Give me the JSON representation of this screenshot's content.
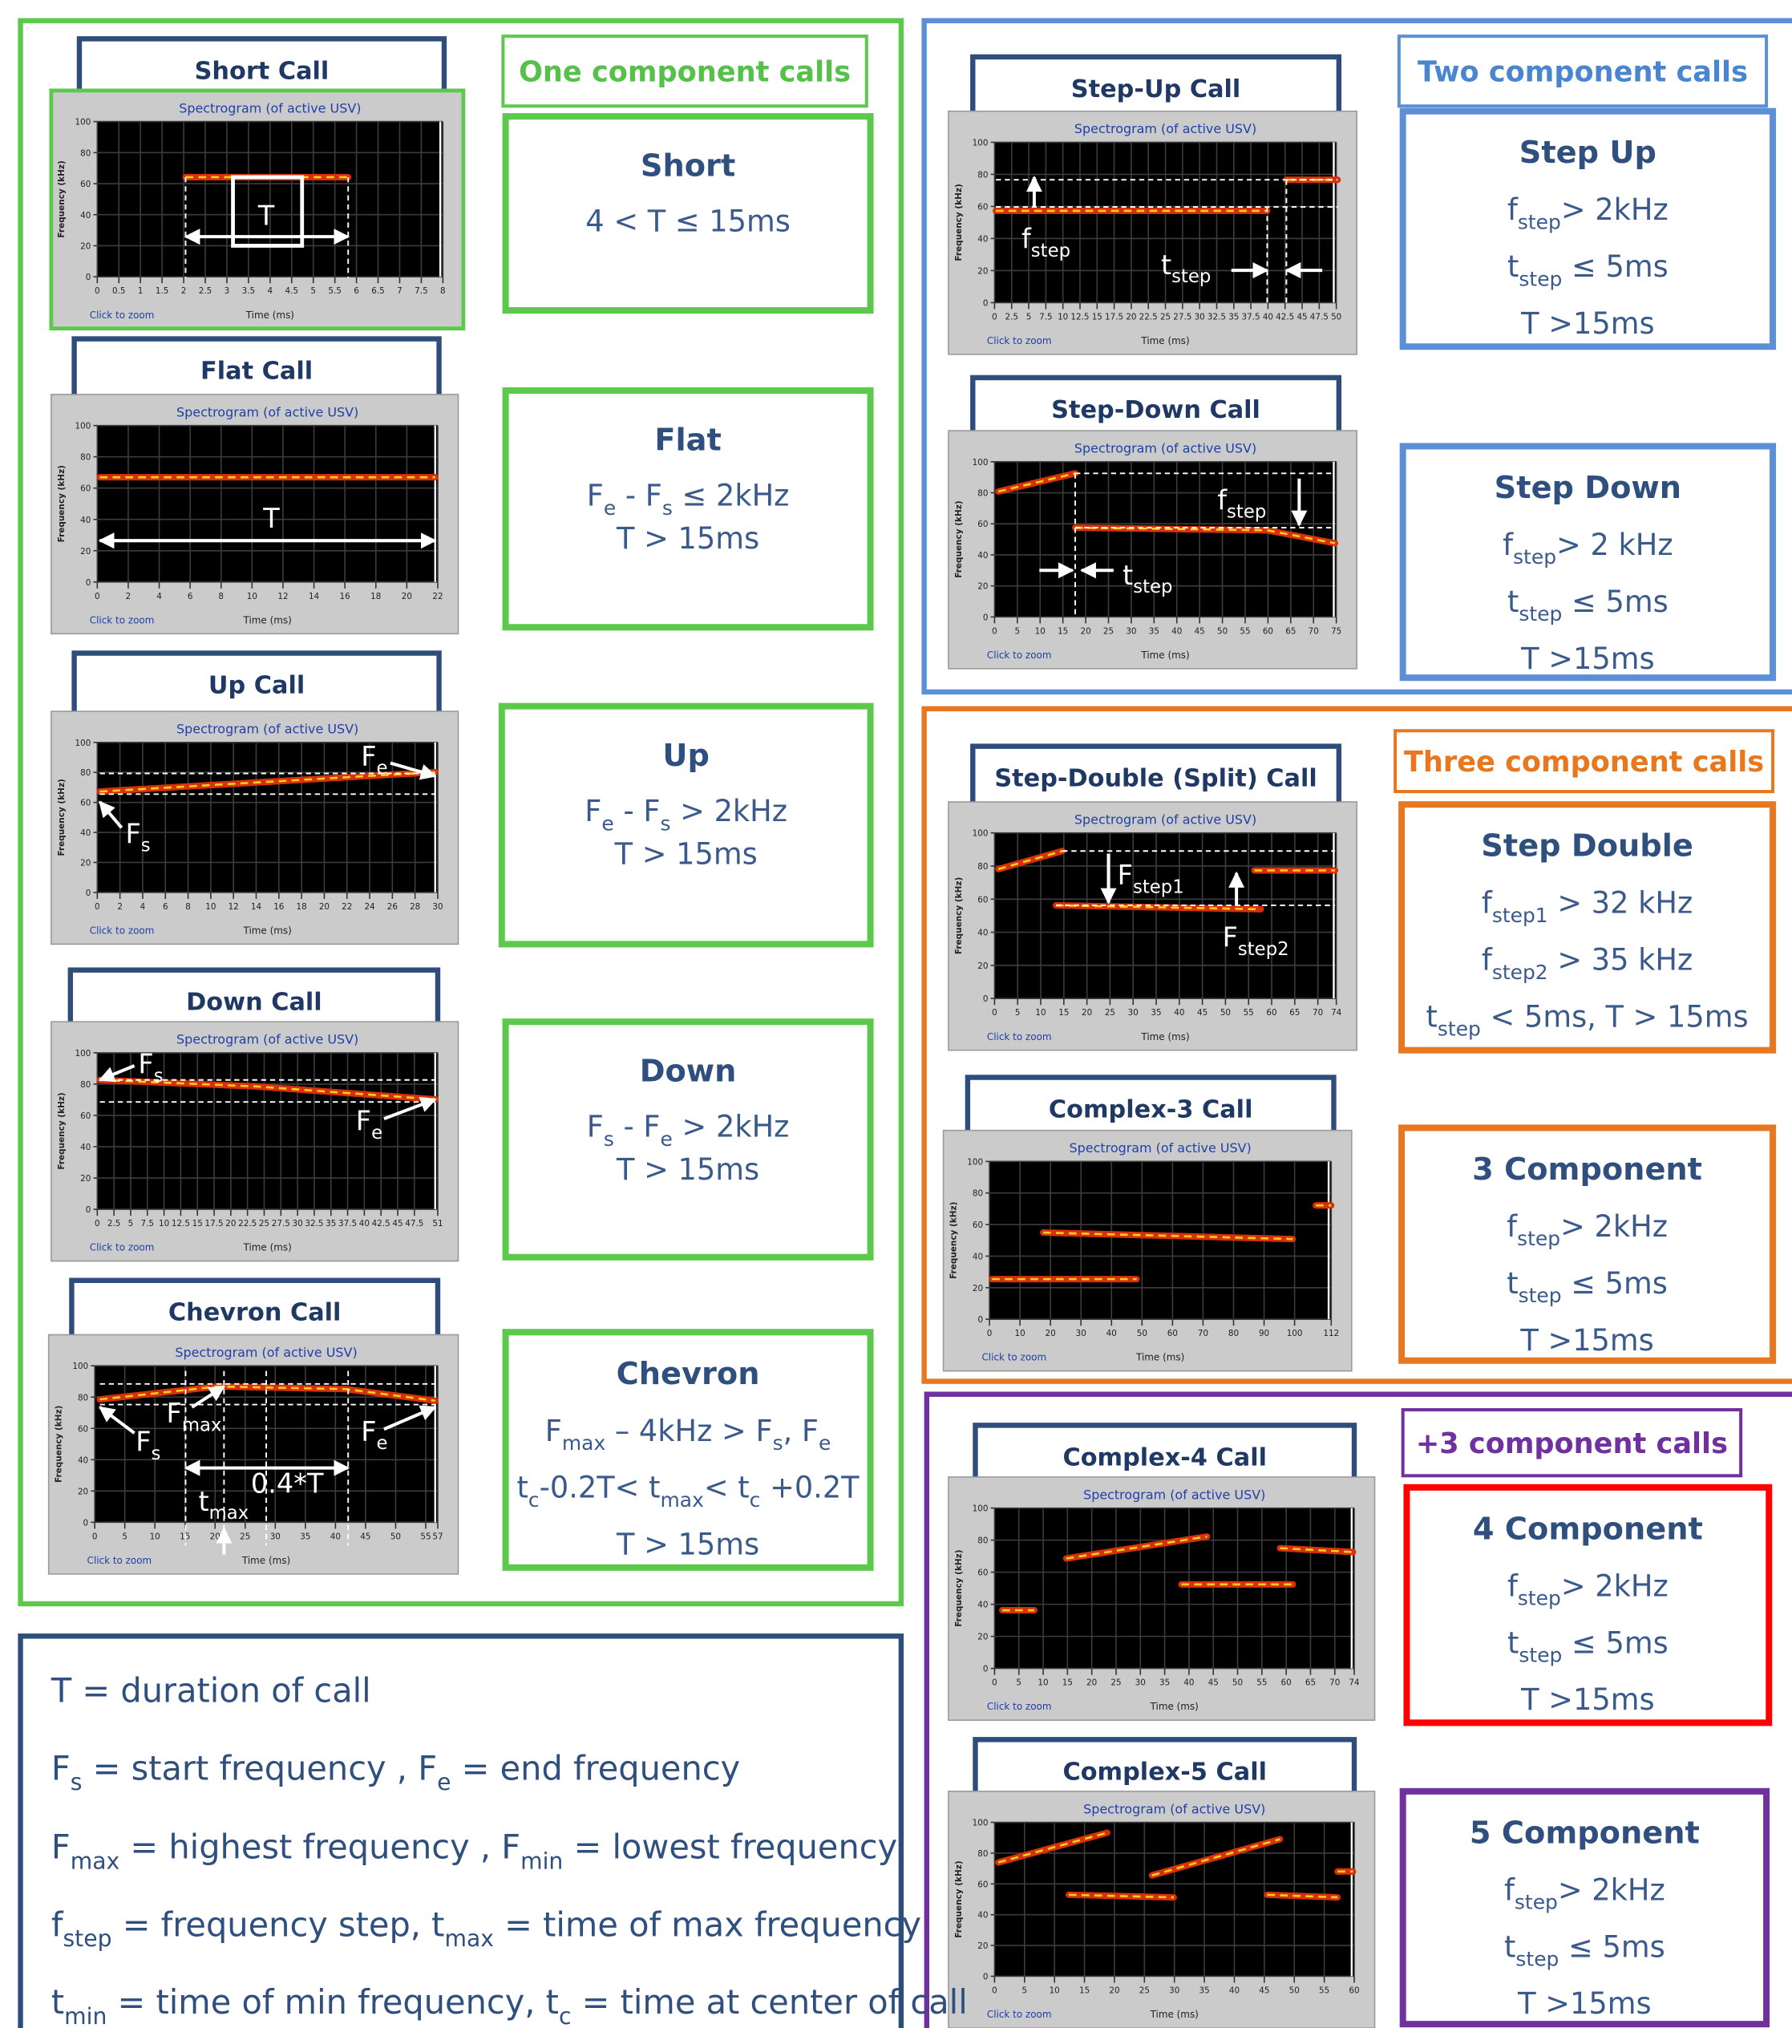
{
  "spectrogram": {
    "title": "Spectrogram (of active USV)",
    "y_label": "Frequency (kHz)",
    "x_label": "Time (ms)",
    "zoom": "Click to zoom",
    "y_ticks": [
      0,
      20,
      40,
      60,
      80,
      100
    ]
  },
  "sections": [
    {
      "heading": "One component calls",
      "panels": [
        {
          "title": "Short Call",
          "x_ticks": [
            0,
            0.5,
            1,
            1.5,
            2,
            2.5,
            3,
            3.5,
            4,
            4.5,
            5,
            5.5,
            6,
            6.5,
            7,
            7.5,
            8
          ],
          "annotations": [
            [
              "T"
            ]
          ],
          "criteria": {
            "heading": "Short",
            "lines": [
              [
                "4 < T ≤ 15ms"
              ]
            ]
          }
        },
        {
          "title": "Flat Call",
          "x_ticks": [
            0,
            2,
            4,
            6,
            8,
            10,
            12,
            14,
            16,
            18,
            20,
            22
          ],
          "annotations": [
            [
              "T"
            ]
          ],
          "criteria": {
            "heading": "Flat",
            "lines": [
              [
                "F",
                {
                  "sub": "e"
                },
                " - F",
                {
                  "sub": "s"
                },
                " ≤ 2kHz"
              ],
              [
                "T > 15ms"
              ]
            ]
          }
        },
        {
          "title": "Up Call",
          "x_ticks": [
            0,
            2,
            4,
            6,
            8,
            10,
            12,
            14,
            16,
            18,
            20,
            22,
            24,
            26,
            28,
            30
          ],
          "annotations": [
            [
              "F",
              {
                "sub": "e"
              }
            ],
            [
              "F",
              {
                "sub": "s"
              }
            ]
          ],
          "criteria": {
            "heading": "Up",
            "lines": [
              [
                "F",
                {
                  "sub": "e"
                },
                " - F",
                {
                  "sub": "s"
                },
                " > 2kHz"
              ],
              [
                "T > 15ms"
              ]
            ]
          }
        },
        {
          "title": "Down Call",
          "x_ticks": [
            0,
            2.5,
            5,
            7.5,
            10,
            12.5,
            15,
            17.5,
            20,
            22.5,
            25,
            27.5,
            30,
            32.5,
            35,
            37.5,
            40,
            42.5,
            45,
            47.5,
            51
          ],
          "annotations": [
            [
              "F",
              {
                "sub": "s"
              }
            ],
            [
              "F",
              {
                "sub": "e"
              }
            ]
          ],
          "criteria": {
            "heading": "Down",
            "lines": [
              [
                "F",
                {
                  "sub": "s"
                },
                " - F",
                {
                  "sub": "e"
                },
                " > 2kHz"
              ],
              [
                "T > 15ms"
              ]
            ]
          }
        },
        {
          "title": "Chevron Call",
          "x_ticks": [
            0,
            5,
            10,
            15,
            20,
            25,
            30,
            35,
            40,
            45,
            50,
            55,
            57
          ],
          "annotations": [
            [
              "F",
              {
                "sub": "max"
              }
            ],
            [
              "F",
              {
                "sub": "s"
              }
            ],
            [
              "F",
              {
                "sub": "e"
              }
            ],
            [
              "0.4*T"
            ],
            [
              "t",
              {
                "sub": "max"
              }
            ]
          ],
          "criteria": {
            "heading": "Chevron",
            "lines": [
              [
                "F",
                {
                  "sub": "max"
                },
                " – 4kHz > F",
                {
                  "sub": "s"
                },
                ", F",
                {
                  "sub": "e"
                }
              ],
              [
                "t",
                {
                  "sub": "c"
                },
                "-0.2T< t",
                {
                  "sub": "max"
                },
                "< t",
                {
                  "sub": "c"
                },
                " +0.2T"
              ],
              [
                "T > 15ms"
              ]
            ]
          }
        }
      ]
    },
    {
      "heading": "Two component calls",
      "panels": [
        {
          "title": "Step-Up Call",
          "x_ticks": [
            0,
            2.5,
            5,
            7.5,
            10,
            12.5,
            15,
            17.5,
            20,
            22.5,
            25,
            27.5,
            30,
            32.5,
            35,
            37.5,
            40,
            42.5,
            45,
            47.5,
            50
          ],
          "annotations": [
            [
              "f",
              {
                "sub": "step"
              }
            ],
            [
              "t",
              {
                "sub": "step"
              }
            ]
          ],
          "criteria": {
            "heading": "Step Up",
            "lines": [
              [
                "f",
                {
                  "sub": "step"
                },
                "> 2kHz"
              ],
              [
                "t",
                {
                  "sub": "step"
                },
                " ≤ 5ms"
              ],
              [
                "T >15ms"
              ]
            ]
          }
        },
        {
          "title": "Step-Down Call",
          "x_ticks": [
            0,
            5,
            10,
            15,
            20,
            25,
            30,
            35,
            40,
            45,
            50,
            55,
            60,
            65,
            70,
            75
          ],
          "annotations": [
            [
              "f",
              {
                "sub": "step"
              }
            ],
            [
              "t",
              {
                "sub": "step"
              }
            ]
          ],
          "criteria": {
            "heading": "Step Down",
            "lines": [
              [
                "f",
                {
                  "sub": "step"
                },
                "> 2 kHz"
              ],
              [
                "t",
                {
                  "sub": "step"
                },
                " ≤ 5ms"
              ],
              [
                "T >15ms"
              ]
            ]
          }
        }
      ]
    },
    {
      "heading": "Three component calls",
      "panels": [
        {
          "title": "Step-Double (Split) Call",
          "x_ticks": [
            0,
            5,
            10,
            15,
            20,
            25,
            30,
            35,
            40,
            45,
            50,
            55,
            60,
            65,
            70,
            74
          ],
          "annotations": [
            [
              "F",
              {
                "sub": "step1"
              }
            ],
            [
              "F",
              {
                "sub": "step2"
              }
            ]
          ],
          "criteria": {
            "heading": "Step Double",
            "lines": [
              [
                "f",
                {
                  "sub": "step1"
                },
                " > 32 kHz"
              ],
              [
                "f",
                {
                  "sub": "step2"
                },
                " > 35 kHz"
              ],
              [
                "t",
                {
                  "sub": "step"
                },
                " < 5ms, T > 15ms"
              ]
            ]
          }
        },
        {
          "title": "Complex-3 Call",
          "x_ticks": [
            0,
            10,
            20,
            30,
            40,
            50,
            60,
            70,
            80,
            90,
            100,
            112
          ],
          "criteria": {
            "heading": "3 Component",
            "lines": [
              [
                "f",
                {
                  "sub": "step"
                },
                "> 2kHz"
              ],
              [
                "t",
                {
                  "sub": "step"
                },
                " ≤ 5ms"
              ],
              [
                "T >15ms"
              ]
            ]
          }
        }
      ]
    },
    {
      "heading": "+3 component calls",
      "panels": [
        {
          "title": "Complex-4 Call",
          "x_ticks": [
            0,
            5,
            10,
            15,
            20,
            25,
            30,
            35,
            40,
            45,
            50,
            55,
            60,
            65,
            70,
            74
          ],
          "criteria": {
            "heading": "4 Component",
            "lines": [
              [
                "f",
                {
                  "sub": "step"
                },
                "> 2kHz"
              ],
              [
                "t",
                {
                  "sub": "step"
                },
                " ≤ 5ms"
              ],
              [
                "T >15ms"
              ]
            ]
          }
        },
        {
          "title": "Complex-5 Call",
          "x_ticks": [
            0,
            5,
            10,
            15,
            20,
            25,
            30,
            35,
            40,
            45,
            50,
            55,
            60
          ],
          "criteria": {
            "heading": "5 Component",
            "lines": [
              [
                "f",
                {
                  "sub": "step"
                },
                "> 2kHz"
              ],
              [
                "t",
                {
                  "sub": "step"
                },
                " ≤ 5ms"
              ],
              [
                "T >15ms"
              ]
            ]
          }
        }
      ]
    }
  ],
  "definitions": [
    [
      "T = duration of call"
    ],
    [
      "F",
      {
        "sub": "s"
      },
      " = start frequency , F",
      {
        "sub": "e"
      },
      "  = end frequency"
    ],
    [
      "F",
      {
        "sub": "max"
      },
      " =  highest frequency , F",
      {
        "sub": "min"
      },
      " = lowest frequency"
    ],
    [
      "f",
      {
        "sub": "step"
      },
      " = frequency step, t",
      {
        "sub": "max"
      },
      " = time of max frequency"
    ],
    [
      "t",
      {
        "sub": "min"
      },
      " = time of min frequency, t",
      {
        "sub": "c"
      },
      " = time at center of call"
    ]
  ]
}
